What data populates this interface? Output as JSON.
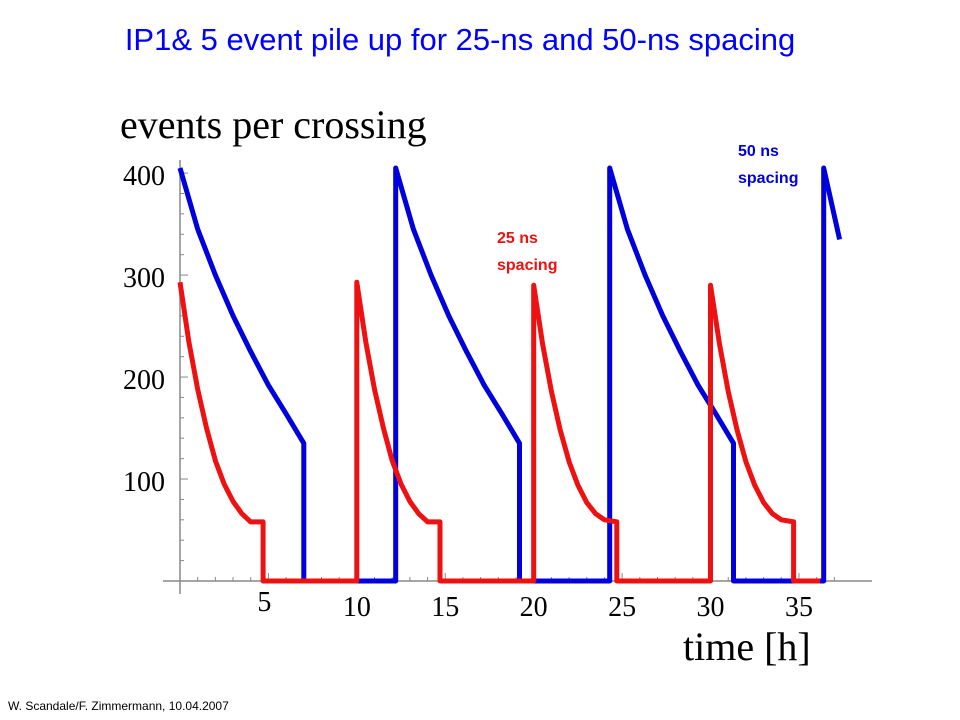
{
  "slide": {
    "title": "IP1& 5 event pile up for 25-ns and 50-ns spacing",
    "footer": "W. Scandale/F. Zimmermann,  10.04.2007"
  },
  "chart_data": {
    "type": "line",
    "title": "events per crossing",
    "xlabel": "time [h]",
    "ylabel": "",
    "xlim": [
      0,
      38
    ],
    "ylim": [
      0,
      420
    ],
    "x_ticks": [
      "5",
      "10",
      "15",
      "20",
      "25",
      "30",
      "35"
    ],
    "y_ticks": [
      "100",
      "200",
      "300",
      "400"
    ],
    "grid": false,
    "series": [
      {
        "name": "50 ns spacing",
        "color": "#0000dd",
        "points": [
          [
            0,
            405
          ],
          [
            1,
            345
          ],
          [
            2,
            300
          ],
          [
            3,
            260
          ],
          [
            4,
            225
          ],
          [
            5,
            192
          ],
          [
            6,
            164
          ],
          [
            7,
            135
          ],
          [
            7,
            0
          ],
          [
            10,
            0
          ],
          [
            12.2,
            0
          ],
          [
            12.2,
            405
          ],
          [
            13.2,
            345
          ],
          [
            14.2,
            300
          ],
          [
            15.2,
            260
          ],
          [
            16.2,
            225
          ],
          [
            17.2,
            192
          ],
          [
            18.2,
            164
          ],
          [
            19.2,
            135
          ],
          [
            19.2,
            0
          ],
          [
            24.3,
            0
          ],
          [
            24.3,
            405
          ],
          [
            25.3,
            345
          ],
          [
            26.3,
            300
          ],
          [
            27.3,
            260
          ],
          [
            28.3,
            225
          ],
          [
            29.3,
            192
          ],
          [
            30.3,
            164
          ],
          [
            31.3,
            135
          ],
          [
            31.3,
            0
          ],
          [
            36.4,
            0
          ],
          [
            36.4,
            405
          ],
          [
            37.3,
            335
          ]
        ]
      },
      {
        "name": "25 ns spacing",
        "color": "#ee1111",
        "points": [
          [
            0,
            293
          ],
          [
            0.5,
            235
          ],
          [
            1,
            188
          ],
          [
            1.5,
            150
          ],
          [
            2,
            118
          ],
          [
            2.5,
            95
          ],
          [
            3,
            78
          ],
          [
            3.5,
            66
          ],
          [
            4,
            58
          ],
          [
            4.7,
            58
          ],
          [
            4.7,
            0
          ],
          [
            6.2,
            0
          ],
          [
            9.3,
            0
          ],
          [
            10,
            0
          ],
          [
            10,
            293
          ],
          [
            10.5,
            235
          ],
          [
            11,
            188
          ],
          [
            11.5,
            150
          ],
          [
            12,
            118
          ],
          [
            12.5,
            95
          ],
          [
            13,
            78
          ],
          [
            13.5,
            66
          ],
          [
            14,
            58
          ],
          [
            14.7,
            58
          ],
          [
            14.7,
            0
          ],
          [
            19.3,
            0
          ],
          [
            20,
            0
          ],
          [
            20,
            290
          ],
          [
            20.5,
            233
          ],
          [
            21,
            186
          ],
          [
            21.5,
            148
          ],
          [
            22,
            117
          ],
          [
            22.5,
            94
          ],
          [
            23,
            77
          ],
          [
            23.5,
            66
          ],
          [
            24,
            60
          ],
          [
            24.7,
            58
          ],
          [
            24.7,
            0
          ],
          [
            29.3,
            0
          ],
          [
            30,
            0
          ],
          [
            30,
            290
          ],
          [
            30.5,
            233
          ],
          [
            31,
            186
          ],
          [
            31.5,
            148
          ],
          [
            32,
            117
          ],
          [
            32.5,
            94
          ],
          [
            33,
            77
          ],
          [
            33.5,
            66
          ],
          [
            34,
            60
          ],
          [
            34.7,
            58
          ],
          [
            34.7,
            0
          ],
          [
            36.2,
            0
          ]
        ]
      }
    ],
    "annotations": [
      {
        "series": "50 ns spacing",
        "line1": "50 ns",
        "line2": "spacing",
        "color": "#0000dd"
      },
      {
        "series": "25 ns spacing",
        "line1": "25 ns",
        "line2": "spacing",
        "color": "#ee1111"
      }
    ]
  }
}
